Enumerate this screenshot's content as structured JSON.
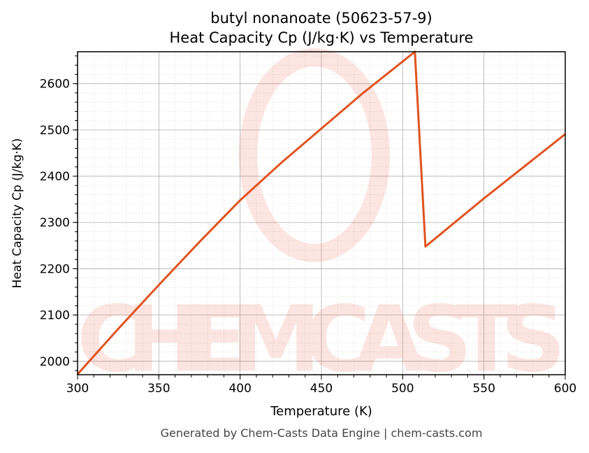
{
  "chart_data": {
    "type": "line",
    "title_line1": "butyl nonanoate (50623-57-9)",
    "title_line2": "Heat Capacity Cp (J/kg·K) vs Temperature",
    "xlabel": "Temperature (K)",
    "ylabel": "Heat Capacity Cp (J/kg·K)",
    "xlim": [
      300,
      600
    ],
    "ylim": [
      1971,
      2669
    ],
    "xticks": [
      "300",
      "350",
      "400",
      "450",
      "500",
      "550",
      "600"
    ],
    "yticks": [
      "2000",
      "2100",
      "2200",
      "2300",
      "2400",
      "2500",
      "2600"
    ],
    "grid": true,
    "series": [
      {
        "color": "#e0531f",
        "x": [
          300,
          325,
          350,
          375,
          400,
          425,
          450,
          475,
          500,
          507.5,
          514,
          550,
          600
        ],
        "y": [
          1972,
          2070,
          2165,
          2258,
          2348,
          2428,
          2503,
          2578,
          2648,
          2669,
          2248,
          2352,
          2491
        ]
      }
    ],
    "watermark": "CHEMCASTS",
    "footer": "Generated by Chem-Casts Data Engine | chem-casts.com"
  }
}
